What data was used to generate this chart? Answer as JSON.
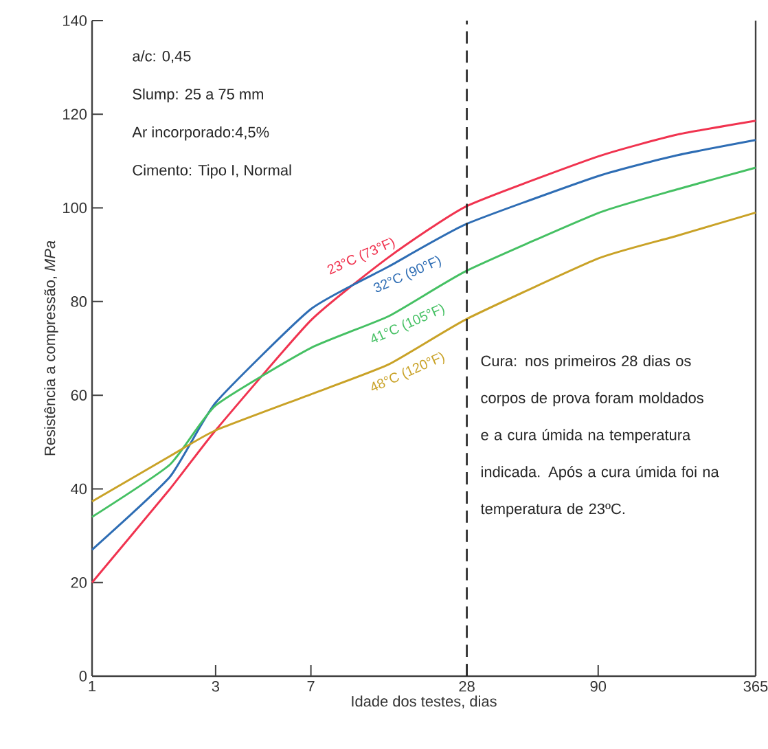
{
  "chart_data": {
    "type": "line",
    "xlabel": "Idade dos testes, dias",
    "ylabel": "Resistência a compressão, *MPa*",
    "log": "x",
    "xlim": [
      1,
      365
    ],
    "ylim": [
      0,
      140
    ],
    "xticks": [
      1,
      3,
      7,
      28,
      90,
      365
    ],
    "yticks": [
      0,
      20,
      40,
      60,
      80,
      100,
      120,
      140
    ],
    "grid": false,
    "legend": false,
    "marker": "none",
    "line_style": "solid",
    "x": [
      1,
      2,
      3,
      7,
      14,
      28,
      90,
      180,
      365
    ],
    "series": [
      {
        "name": "23°C (73°F)",
        "color": "#f0334f",
        "values": [
          20,
          40,
          52.5,
          76,
          89.5,
          100.4,
          111,
          115.6,
          118.6
        ]
      },
      {
        "name": "32°C (90°F)",
        "color": "#2e6db4",
        "values": [
          27,
          42.6,
          58.4,
          78.4,
          87.5,
          96.6,
          106.8,
          111.2,
          114.5
        ]
      },
      {
        "name": "41°C (105°F)",
        "color": "#45c063",
        "values": [
          34,
          45.2,
          57.8,
          70.1,
          76.9,
          86.6,
          98.9,
          103.9,
          108.6
        ]
      },
      {
        "name": "48°C (120°F)",
        "color": "#c9a227",
        "values": [
          37.3,
          47,
          52.5,
          60.2,
          66.6,
          76.3,
          89.2,
          94,
          99
        ]
      }
    ],
    "ref_lines": [
      {
        "axis": "x",
        "value": 28,
        "color": "#222222",
        "line_style": "dashed"
      }
    ],
    "annotations": [
      "a/c: 0,45",
      "Slump: 25 a 75 mm",
      "Ar incorporado:4,5%",
      "Cimento: Tipo I, Normal",
      "Cura: nos primeiros 28 dias os corpos de prova foram moldados e a cura úmida na temperatura indicada. Após a cura úmida foi na temperatura de 23ºC."
    ]
  }
}
